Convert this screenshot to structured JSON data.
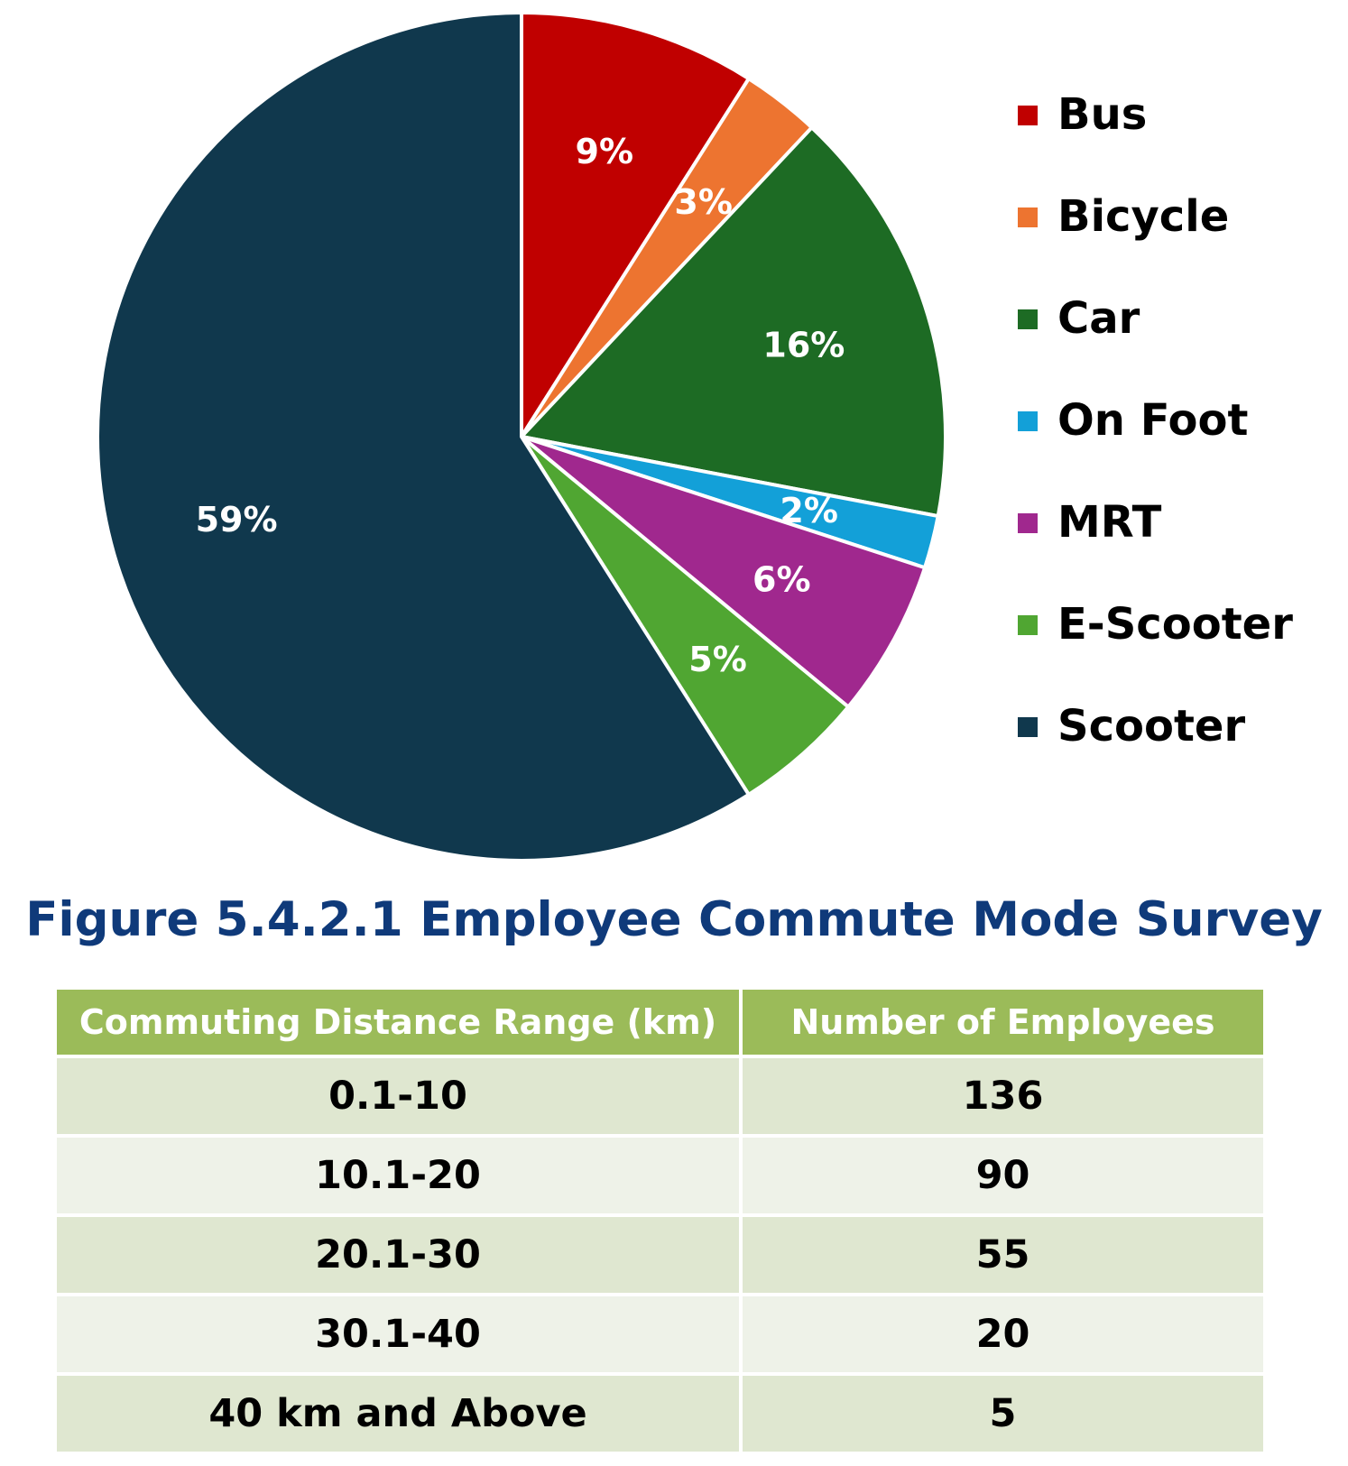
{
  "chart_data": {
    "type": "pie",
    "title": "",
    "slices": [
      {
        "label": "Bus",
        "value": 9,
        "value_label": "9%",
        "color": "#c00000"
      },
      {
        "label": "Bicycle",
        "value": 3,
        "value_label": "3%",
        "color": "#ed7430"
      },
      {
        "label": "Car",
        "value": 16,
        "value_label": "16%",
        "color": "#1d6b24"
      },
      {
        "label": "On Foot",
        "value": 2,
        "value_label": "2%",
        "color": "#13a0d8"
      },
      {
        "label": "MRT",
        "value": 6,
        "value_label": "6%",
        "color": "#a0288e"
      },
      {
        "label": "E-Scooter",
        "value": 5,
        "value_label": "5%",
        "color": "#50a632"
      },
      {
        "label": "Scooter",
        "value": 59,
        "value_label": "59%",
        "color": "#10384d"
      }
    ],
    "legend_position": "right",
    "start_angle": "12 o'clock, clockwise"
  },
  "caption": "Figure 5.4.2.1 Employee Commute Mode Survey",
  "table": {
    "headers": [
      "Commuting Distance Range (km)",
      "Number of Employees"
    ],
    "rows": [
      [
        "0.1-10",
        "136"
      ],
      [
        "10.1-20",
        "90"
      ],
      [
        "20.1-30",
        "55"
      ],
      [
        "30.1-40",
        "20"
      ],
      [
        "40 km and Above",
        "5"
      ]
    ],
    "header_color": "#9bbb59",
    "row_colors": [
      "#dfe7d0",
      "#eef2e8"
    ]
  }
}
